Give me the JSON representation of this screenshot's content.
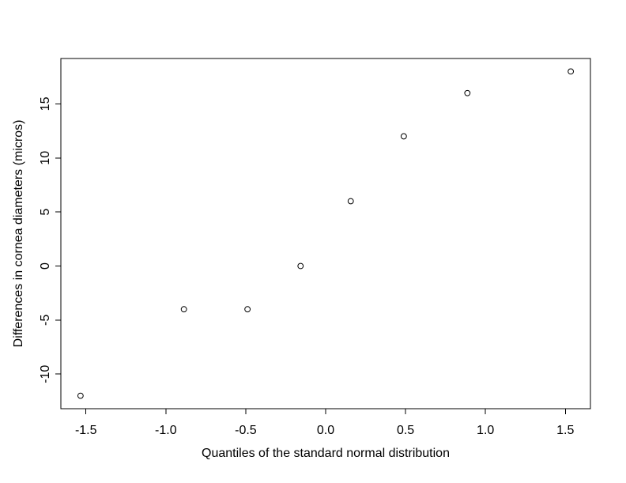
{
  "window": {
    "background": "#ffffff"
  },
  "chart_data": {
    "type": "scatter",
    "xlabel": "Quantiles of the standard normal distribution",
    "ylabel": "Differences in cornea diameters (micros)",
    "points": [
      {
        "x": -1.534,
        "y": -12
      },
      {
        "x": -0.887,
        "y": -4
      },
      {
        "x": -0.489,
        "y": -4
      },
      {
        "x": -0.157,
        "y": 0
      },
      {
        "x": 0.157,
        "y": 6
      },
      {
        "x": 0.489,
        "y": 12
      },
      {
        "x": 0.887,
        "y": 16
      },
      {
        "x": 1.534,
        "y": 18
      }
    ],
    "xticks": [
      {
        "value": -1.5,
        "label": "-1.5"
      },
      {
        "value": -1.0,
        "label": "-1.0"
      },
      {
        "value": -0.5,
        "label": "-0.5"
      },
      {
        "value": 0.0,
        "label": "0.0"
      },
      {
        "value": 0.5,
        "label": "0.5"
      },
      {
        "value": 1.0,
        "label": "1.0"
      },
      {
        "value": 1.5,
        "label": "1.5"
      }
    ],
    "yticks": [
      {
        "value": -10,
        "label": "-10"
      },
      {
        "value": -5,
        "label": "-5"
      },
      {
        "value": 0,
        "label": "0"
      },
      {
        "value": 5,
        "label": "5"
      },
      {
        "value": 10,
        "label": "10"
      },
      {
        "value": 15,
        "label": "15"
      }
    ],
    "xlim": [
      -1.657,
      1.657
    ],
    "ylim": [
      -13.2,
      19.2
    ],
    "grid": false,
    "legend": null,
    "marker": "open-circle",
    "marker_color": "#000000",
    "axis_color": "#000000",
    "text_color": "#000000",
    "plot_background": "#ffffff",
    "ytick_label_rotation": -90
  }
}
